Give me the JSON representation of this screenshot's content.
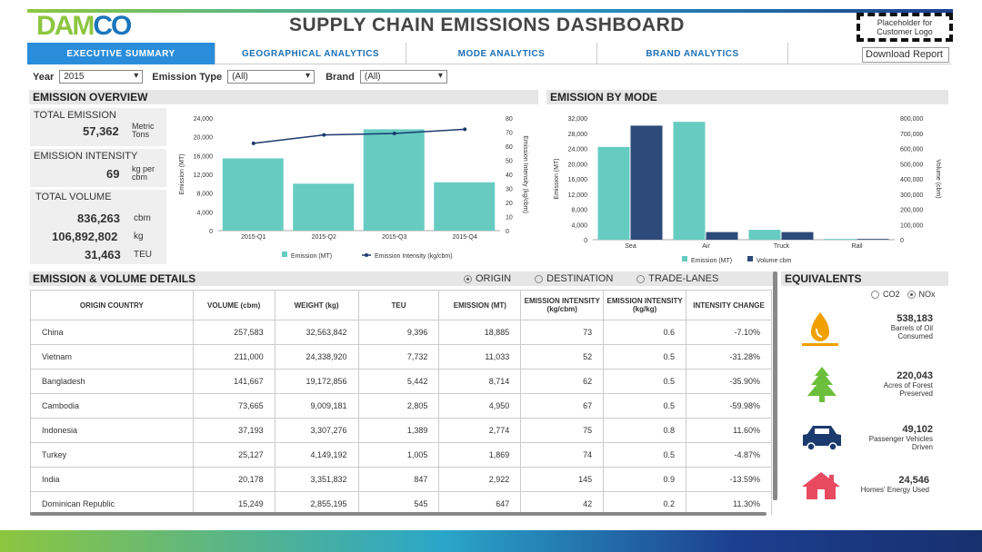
{
  "header": {
    "logo": "DAMCO",
    "title": "SUPPLY CHAIN EMISSIONS DASHBOARD",
    "customer_logo": "Placeholder for Customer Logo",
    "download_label": "Download Report"
  },
  "tabs": [
    {
      "label": "EXECUTIVE SUMMARY",
      "active": true
    },
    {
      "label": "GEOGRAPHICAL ANALYTICS",
      "active": false
    },
    {
      "label": "MODE ANALYTICS",
      "active": false
    },
    {
      "label": "BRAND ANALYTICS",
      "active": false
    }
  ],
  "filters": {
    "year_label": "Year",
    "year_value": "2015",
    "type_label": "Emission Type",
    "type_value": "(All)",
    "brand_label": "Brand",
    "brand_value": "(All)"
  },
  "overview": {
    "title": "EMISSION OVERVIEW",
    "total_emission_label": "TOTAL EMISSION",
    "total_emission_value": "57,362",
    "total_emission_unit": "Metric Tons",
    "intensity_label": "EMISSION INTENSITY",
    "intensity_value": "69",
    "intensity_unit": "kg per cbm",
    "volume_label": "TOTAL VOLUME",
    "volume_cbm": "836,263",
    "volume_cbm_unit": "cbm",
    "volume_kg": "106,892,802",
    "volume_kg_unit": "kg",
    "volume_teu": "31,463",
    "volume_teu_unit": "TEU"
  },
  "mode_title": "EMISSION BY MODE",
  "chart_data": [
    {
      "type": "bar",
      "categories": [
        "2015-Q1",
        "2015-Q2",
        "2015-Q3",
        "2015-Q4"
      ],
      "series": [
        {
          "name": "Emission (MT)",
          "values": [
            15400,
            10000,
            21600,
            10300
          ],
          "color": "#66ccc2",
          "axis": "left"
        },
        {
          "name": "Emission Intensity (kg/cbm)",
          "type": "line",
          "values": [
            62,
            68,
            69,
            72
          ],
          "color": "#1b3a6e",
          "axis": "right"
        }
      ],
      "ylabel": "Emission (MT)",
      "y2label": "Emission Intensity (kg/cbm)",
      "ylim": [
        0,
        24000
      ],
      "y2lim": [
        0,
        80
      ],
      "yticks": [
        "0",
        "4,000",
        "8,000",
        "12,000",
        "16,000",
        "20,000",
        "24,000"
      ],
      "y2ticks": [
        "0",
        "10",
        "20",
        "30",
        "40",
        "50",
        "60",
        "70",
        "80"
      ],
      "xlabels": [
        "2015-Q1",
        "2015-Q2",
        "2015-Q3",
        "2015-Q4"
      ],
      "legend": [
        "Emission (MT)",
        "Emission Intensity (kg/cbm)"
      ],
      "grid": false
    },
    {
      "type": "bar",
      "categories": [
        "Sea",
        "Air",
        "Truck",
        "Rail"
      ],
      "series": [
        {
          "name": "Emission (MT)",
          "values": [
            24400,
            31000,
            2600,
            200
          ],
          "color": "#66ccc2",
          "axis": "left"
        },
        {
          "name": "Volume cbm",
          "values": [
            750000,
            50000,
            50000,
            5000
          ],
          "color": "#2e4a7a",
          "axis": "right"
        }
      ],
      "ylabel": "Emission (MT)",
      "y2label": "Volume (cbm)",
      "ylim": [
        0,
        32000
      ],
      "y2lim": [
        0,
        800000
      ],
      "yticks": [
        "0",
        "4,000",
        "8,000",
        "12,000",
        "16,000",
        "20,000",
        "24,000",
        "28,000",
        "32,000"
      ],
      "y2ticks": [
        "0",
        "100,000",
        "200,000",
        "300,000",
        "400,000",
        "500,000",
        "600,000",
        "700,000",
        "800,000"
      ],
      "xlabels": [
        "Sea",
        "Air",
        "Truck",
        "Rail"
      ],
      "legend": [
        "Emission (MT)",
        "Volume cbm"
      ],
      "grid": false
    }
  ],
  "details": {
    "title": "EMISSION & VOLUME DETAILS",
    "radios": [
      {
        "label": "ORIGIN",
        "on": true
      },
      {
        "label": "DESTINATION",
        "on": false
      },
      {
        "label": "TRADE-LANES",
        "on": false
      }
    ],
    "columns": [
      "ORIGIN COUNTRY",
      "VOLUME (cbm)",
      "WEIGHT (kg)",
      "TEU",
      "EMISSION (MT)",
      "EMISSION INTENSITY (kg/cbm)",
      "EMISSION INTENSITY (kg/kg)",
      "INTENSITY CHANGE"
    ],
    "rows": [
      [
        "China",
        "257,583",
        "32,563,842",
        "9,396",
        "18,885",
        "73",
        "0.6",
        "-7.10%"
      ],
      [
        "Vietnam",
        "211,000",
        "24,338,920",
        "7,732",
        "11,033",
        "52",
        "0.5",
        "-31.28%"
      ],
      [
        "Bangladesh",
        "141,667",
        "19,172,856",
        "5,442",
        "8,714",
        "62",
        "0.5",
        "-35.90%"
      ],
      [
        "Cambodia",
        "73,665",
        "9,009,181",
        "2,805",
        "4,950",
        "67",
        "0.5",
        "-59.98%"
      ],
      [
        "Indonesia",
        "37,193",
        "3,307,276",
        "1,389",
        "2,774",
        "75",
        "0.8",
        "11.60%"
      ],
      [
        "Turkey",
        "25,127",
        "4,149,192",
        "1,005",
        "1,869",
        "74",
        "0.5",
        "-4.87%"
      ],
      [
        "India",
        "20,178",
        "3,351,832",
        "847",
        "2,922",
        "145",
        "0.9",
        "-13.59%"
      ],
      [
        "Dominican Republic",
        "15,249",
        "2,855,195",
        "545",
        "647",
        "42",
        "0.2",
        "11.30%"
      ]
    ]
  },
  "equivalents": {
    "title": "EQUIVALENTS",
    "radio_co2": "CO2",
    "radio_nox": "NOx",
    "items": [
      {
        "icon": "oil-drop-icon",
        "value": "538,183",
        "label": "Barrels of Oil Consumed",
        "color": "#f0a000"
      },
      {
        "icon": "tree-icon",
        "value": "220,043",
        "label": "Acres of Forest Preserved",
        "color": "#6cbf3c"
      },
      {
        "icon": "car-icon",
        "value": "49,102",
        "label": "Passenger Vehicles Driven",
        "color": "#1b3a6e"
      },
      {
        "icon": "house-icon",
        "value": "24,546",
        "label": "Homes' Energy Used",
        "color": "#e84a5f"
      }
    ]
  }
}
